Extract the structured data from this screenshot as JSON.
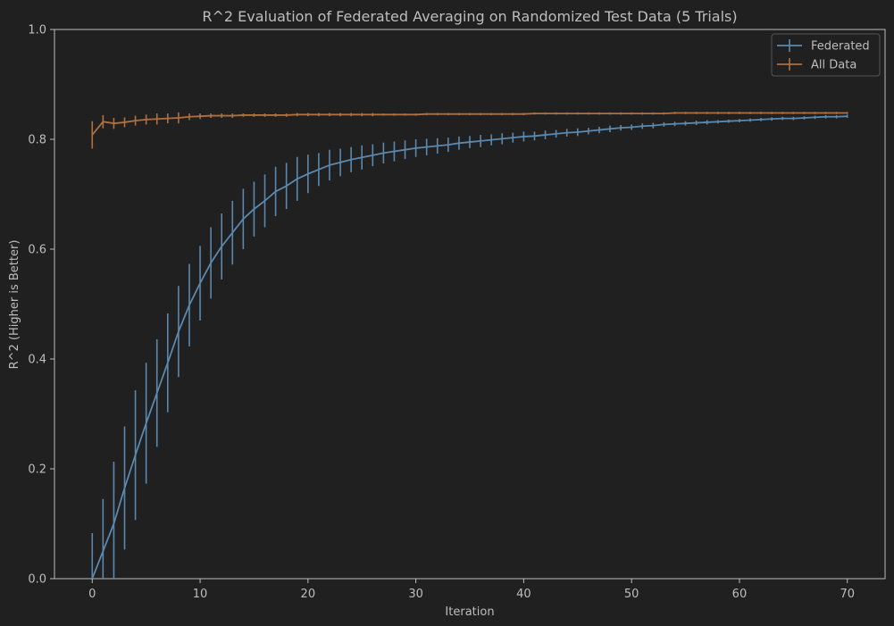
{
  "chart_data": {
    "type": "line",
    "title": "R^2 Evaluation of Federated Averaging on Randomized Test Data (5 Trials)",
    "xlabel": "Iteration",
    "ylabel": "R^2 (Higher is Better)",
    "xlim": [
      -3.5,
      73.5
    ],
    "ylim": [
      0.0,
      1.0
    ],
    "xticks": [
      0,
      10,
      20,
      30,
      40,
      50,
      60,
      70
    ],
    "yticks": [
      0.0,
      0.2,
      0.4,
      0.6,
      0.8,
      1.0
    ],
    "xtick_labels": [
      "0",
      "10",
      "20",
      "30",
      "40",
      "50",
      "60",
      "70"
    ],
    "ytick_labels": [
      "0.0",
      "0.2",
      "0.4",
      "0.6",
      "0.8",
      "1.0"
    ],
    "grid": false,
    "legend": "top-right",
    "colors": {
      "background": "#202020",
      "axes": "#bdbdbd",
      "text": "#bdbdbd",
      "federated": "#5b88ad",
      "all_data": "#b06f3f"
    },
    "series": [
      {
        "name": "Federated",
        "color": "#5b88ad",
        "x": [
          0,
          1,
          2,
          3,
          4,
          5,
          6,
          7,
          8,
          9,
          10,
          11,
          12,
          13,
          14,
          15,
          16,
          17,
          18,
          19,
          20,
          21,
          22,
          23,
          24,
          25,
          26,
          27,
          28,
          29,
          30,
          31,
          32,
          33,
          34,
          35,
          36,
          37,
          38,
          39,
          40,
          41,
          42,
          43,
          44,
          45,
          46,
          47,
          48,
          49,
          50,
          51,
          52,
          53,
          54,
          55,
          56,
          57,
          58,
          59,
          60,
          61,
          62,
          63,
          64,
          65,
          66,
          67,
          68,
          69,
          70
        ],
        "y": [
          0.0,
          0.05,
          0.1,
          0.165,
          0.225,
          0.283,
          0.338,
          0.393,
          0.45,
          0.498,
          0.538,
          0.575,
          0.605,
          0.63,
          0.655,
          0.673,
          0.688,
          0.705,
          0.715,
          0.728,
          0.737,
          0.745,
          0.753,
          0.758,
          0.763,
          0.767,
          0.771,
          0.775,
          0.778,
          0.781,
          0.784,
          0.786,
          0.788,
          0.79,
          0.793,
          0.795,
          0.797,
          0.799,
          0.801,
          0.803,
          0.805,
          0.806,
          0.808,
          0.81,
          0.812,
          0.813,
          0.815,
          0.817,
          0.819,
          0.821,
          0.822,
          0.824,
          0.825,
          0.827,
          0.828,
          0.829,
          0.83,
          0.831,
          0.832,
          0.833,
          0.834,
          0.835,
          0.836,
          0.837,
          0.838,
          0.838,
          0.839,
          0.84,
          0.841,
          0.841,
          0.842
        ],
        "err": [
          0.083,
          0.095,
          0.113,
          0.112,
          0.118,
          0.11,
          0.098,
          0.09,
          0.083,
          0.075,
          0.068,
          0.065,
          0.06,
          0.058,
          0.055,
          0.05,
          0.048,
          0.045,
          0.042,
          0.04,
          0.035,
          0.03,
          0.028,
          0.025,
          0.023,
          0.022,
          0.02,
          0.019,
          0.018,
          0.017,
          0.016,
          0.015,
          0.014,
          0.013,
          0.012,
          0.011,
          0.011,
          0.01,
          0.01,
          0.009,
          0.009,
          0.008,
          0.008,
          0.007,
          0.007,
          0.007,
          0.006,
          0.006,
          0.006,
          0.005,
          0.005,
          0.005,
          0.005,
          0.004,
          0.004,
          0.004,
          0.004,
          0.004,
          0.003,
          0.003,
          0.003,
          0.003,
          0.003,
          0.003,
          0.003,
          0.003,
          0.003,
          0.003,
          0.003,
          0.003,
          0.003
        ]
      },
      {
        "name": "All Data",
        "color": "#b06f3f",
        "x": [
          0,
          1,
          2,
          3,
          4,
          5,
          6,
          7,
          8,
          9,
          10,
          11,
          12,
          13,
          14,
          15,
          16,
          17,
          18,
          19,
          20,
          21,
          22,
          23,
          24,
          25,
          26,
          27,
          28,
          29,
          30,
          31,
          32,
          33,
          34,
          35,
          36,
          37,
          38,
          39,
          40,
          41,
          42,
          43,
          44,
          45,
          46,
          47,
          48,
          49,
          50,
          51,
          52,
          53,
          54,
          55,
          56,
          57,
          58,
          59,
          60,
          61,
          62,
          63,
          64,
          65,
          66,
          67,
          68,
          69,
          70
        ],
        "y": [
          0.808,
          0.832,
          0.829,
          0.831,
          0.834,
          0.836,
          0.837,
          0.838,
          0.839,
          0.841,
          0.842,
          0.843,
          0.843,
          0.843,
          0.844,
          0.844,
          0.844,
          0.844,
          0.844,
          0.845,
          0.845,
          0.845,
          0.845,
          0.845,
          0.845,
          0.845,
          0.845,
          0.845,
          0.845,
          0.845,
          0.845,
          0.846,
          0.846,
          0.846,
          0.846,
          0.846,
          0.846,
          0.846,
          0.846,
          0.846,
          0.846,
          0.847,
          0.847,
          0.847,
          0.847,
          0.847,
          0.847,
          0.847,
          0.847,
          0.847,
          0.847,
          0.847,
          0.847,
          0.847,
          0.848,
          0.848,
          0.848,
          0.848,
          0.848,
          0.848,
          0.848,
          0.848,
          0.848,
          0.848,
          0.848,
          0.848,
          0.848,
          0.848,
          0.848,
          0.848,
          0.848
        ],
        "err": [
          0.025,
          0.012,
          0.01,
          0.009,
          0.009,
          0.009,
          0.01,
          0.009,
          0.01,
          0.006,
          0.005,
          0.004,
          0.004,
          0.004,
          0.003,
          0.003,
          0.003,
          0.003,
          0.003,
          0.003,
          0.003,
          0.003,
          0.003,
          0.003,
          0.003,
          0.003,
          0.003,
          0.002,
          0.002,
          0.002,
          0.002,
          0.002,
          0.002,
          0.002,
          0.002,
          0.002,
          0.002,
          0.002,
          0.002,
          0.002,
          0.002,
          0.002,
          0.002,
          0.002,
          0.002,
          0.002,
          0.002,
          0.002,
          0.002,
          0.002,
          0.002,
          0.002,
          0.002,
          0.002,
          0.002,
          0.002,
          0.002,
          0.002,
          0.002,
          0.002,
          0.002,
          0.002,
          0.002,
          0.002,
          0.002,
          0.002,
          0.002,
          0.002,
          0.002,
          0.002,
          0.002
        ]
      }
    ]
  }
}
